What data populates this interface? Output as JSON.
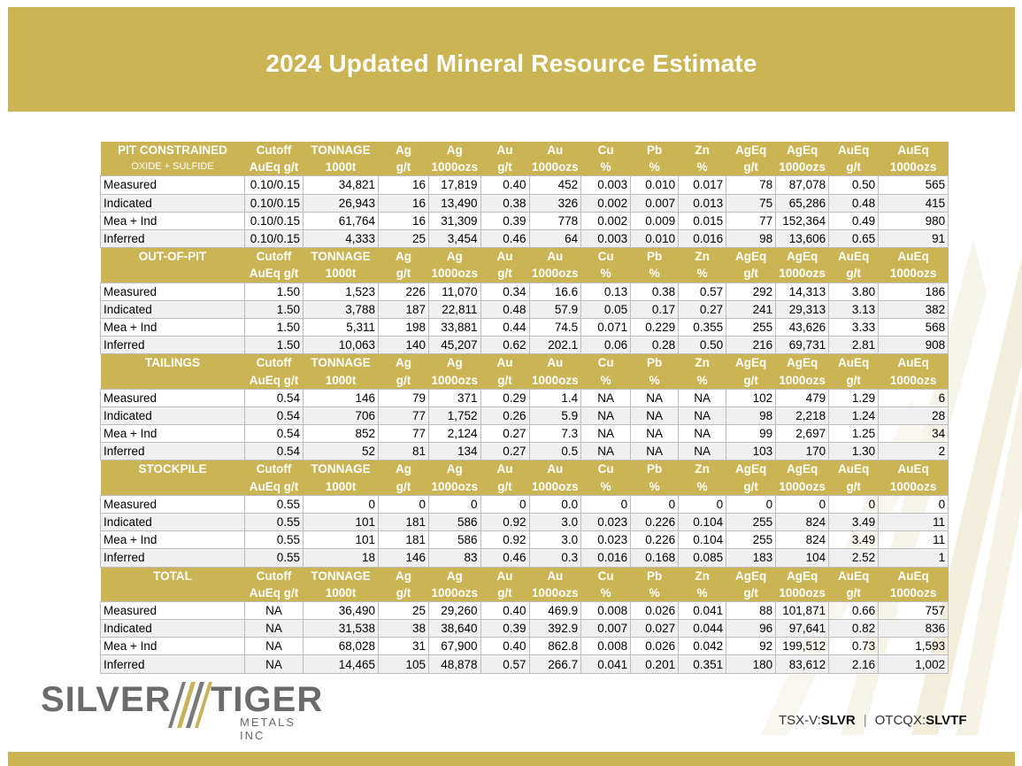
{
  "title": "2024 Updated Mineral Resource Estimate",
  "header_columns": {
    "row1": [
      "Cutoff",
      "TONNAGE",
      "Ag",
      "Ag",
      "Au",
      "Au",
      "Cu",
      "Pb",
      "Zn",
      "AgEq",
      "AgEq",
      "AuEq",
      "AuEq"
    ],
    "row2": [
      "AuEq g/t",
      "1000t",
      "g/t",
      "1000ozs",
      "g/t",
      "1000ozs",
      "%",
      "%",
      "%",
      "g/t",
      "1000ozs",
      "g/t",
      "1000ozs"
    ]
  },
  "sections": [
    {
      "name": "PIT CONSTRAINED",
      "subname": "OXIDE + SULFIDE",
      "rows": [
        {
          "category": "Measured",
          "values": [
            "0.10/0.15",
            "34,821",
            "16",
            "17,819",
            "0.40",
            "452",
            "0.003",
            "0.010",
            "0.017",
            "78",
            "87,078",
            "0.50",
            "565"
          ]
        },
        {
          "category": "Indicated",
          "values": [
            "0.10/0.15",
            "26,943",
            "16",
            "13,490",
            "0.38",
            "326",
            "0.002",
            "0.007",
            "0.013",
            "75",
            "65,286",
            "0.48",
            "415"
          ]
        },
        {
          "category": "Mea + Ind",
          "values": [
            "0.10/0.15",
            "61,764",
            "16",
            "31,309",
            "0.39",
            "778",
            "0.002",
            "0.009",
            "0.015",
            "77",
            "152,364",
            "0.49",
            "980"
          ]
        },
        {
          "category": "Inferred",
          "values": [
            "0.10/0.15",
            "4,333",
            "25",
            "3,454",
            "0.46",
            "64",
            "0.003",
            "0.010",
            "0.016",
            "98",
            "13,606",
            "0.65",
            "91"
          ]
        }
      ]
    },
    {
      "name": "OUT-OF-PIT",
      "subname": "",
      "rows": [
        {
          "category": "Measured",
          "values": [
            "1.50",
            "1,523",
            "226",
            "11,070",
            "0.34",
            "16.6",
            "0.13",
            "0.38",
            "0.57",
            "292",
            "14,313",
            "3.80",
            "186"
          ]
        },
        {
          "category": "Indicated",
          "values": [
            "1.50",
            "3,788",
            "187",
            "22,811",
            "0.48",
            "57.9",
            "0.05",
            "0.17",
            "0.27",
            "241",
            "29,313",
            "3.13",
            "382"
          ]
        },
        {
          "category": "Mea + Ind",
          "values": [
            "1.50",
            "5,311",
            "198",
            "33,881",
            "0.44",
            "74.5",
            "0.071",
            "0.229",
            "0.355",
            "255",
            "43,626",
            "3.33",
            "568"
          ]
        },
        {
          "category": "Inferred",
          "values": [
            "1.50",
            "10,063",
            "140",
            "45,207",
            "0.62",
            "202.1",
            "0.06",
            "0.28",
            "0.50",
            "216",
            "69,731",
            "2.81",
            "908"
          ]
        }
      ]
    },
    {
      "name": "TAILINGS",
      "subname": "",
      "rows": [
        {
          "category": "Measured",
          "values": [
            "0.54",
            "146",
            "79",
            "371",
            "0.29",
            "1.4",
            "NA",
            "NA",
            "NA",
            "102",
            "479",
            "1.29",
            "6"
          ]
        },
        {
          "category": "Indicated",
          "values": [
            "0.54",
            "706",
            "77",
            "1,752",
            "0.26",
            "5.9",
            "NA",
            "NA",
            "NA",
            "98",
            "2,218",
            "1.24",
            "28"
          ]
        },
        {
          "category": "Mea + Ind",
          "values": [
            "0.54",
            "852",
            "77",
            "2,124",
            "0.27",
            "7.3",
            "NA",
            "NA",
            "NA",
            "99",
            "2,697",
            "1.25",
            "34"
          ]
        },
        {
          "category": "Inferred",
          "values": [
            "0.54",
            "52",
            "81",
            "134",
            "0.27",
            "0.5",
            "NA",
            "NA",
            "NA",
            "103",
            "170",
            "1.30",
            "2"
          ]
        }
      ]
    },
    {
      "name": "STOCKPILE",
      "subname": "",
      "rows": [
        {
          "category": "Measured",
          "values": [
            "0.55",
            "0",
            "0",
            "0",
            "0",
            "0.0",
            "0",
            "0",
            "0",
            "0",
            "0",
            "0",
            "0"
          ]
        },
        {
          "category": "Indicated",
          "values": [
            "0.55",
            "101",
            "181",
            "586",
            "0.92",
            "3.0",
            "0.023",
            "0.226",
            "0.104",
            "255",
            "824",
            "3.49",
            "11"
          ]
        },
        {
          "category": "Mea + Ind",
          "values": [
            "0.55",
            "101",
            "181",
            "586",
            "0.92",
            "3.0",
            "0.023",
            "0.226",
            "0.104",
            "255",
            "824",
            "3.49",
            "11"
          ]
        },
        {
          "category": "Inferred",
          "values": [
            "0.55",
            "18",
            "146",
            "83",
            "0.46",
            "0.3",
            "0.016",
            "0.168",
            "0.085",
            "183",
            "104",
            "2.52",
            "1"
          ]
        }
      ]
    },
    {
      "name": "TOTAL",
      "subname": "",
      "rows": [
        {
          "category": "Measured",
          "values": [
            "NA",
            "36,490",
            "25",
            "29,260",
            "0.40",
            "469.9",
            "0.008",
            "0.026",
            "0.041",
            "88",
            "101,871",
            "0.66",
            "757"
          ]
        },
        {
          "category": "Indicated",
          "values": [
            "NA",
            "31,538",
            "38",
            "38,640",
            "0.39",
            "392.9",
            "0.007",
            "0.027",
            "0.044",
            "96",
            "97,641",
            "0.82",
            "836"
          ]
        },
        {
          "category": "Mea + Ind",
          "values": [
            "NA",
            "68,028",
            "31",
            "67,900",
            "0.40",
            "862.8",
            "0.008",
            "0.026",
            "0.042",
            "92",
            "199,512",
            "0.73",
            "1,593"
          ]
        },
        {
          "category": "Inferred",
          "values": [
            "NA",
            "14,465",
            "105",
            "48,878",
            "0.57",
            "266.7",
            "0.041",
            "0.201",
            "0.351",
            "180",
            "83,612",
            "2.16",
            "1,002"
          ]
        }
      ]
    }
  ],
  "logo": {
    "word1": "SILVER",
    "word2": "TIGER",
    "tagline": "METALS INC"
  },
  "ticker": {
    "tsx_prefix": "TSX-V:",
    "tsx_symbol": "SLVR",
    "separator": "|",
    "otc_prefix": "OTCQX:",
    "otc_symbol": "SLVTF"
  },
  "colors": {
    "gold": "#cbb453",
    "text_gray": "#6b6b6b"
  }
}
